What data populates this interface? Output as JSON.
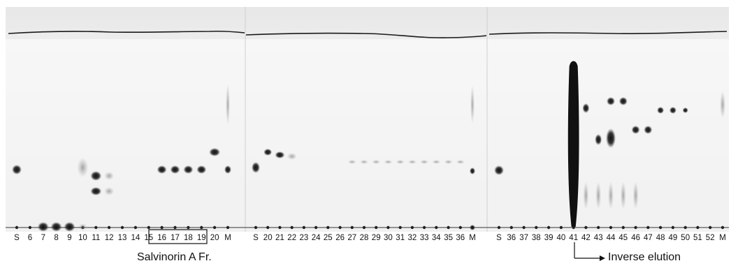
{
  "panels": [
    {
      "lanes": [
        "S",
        "6",
        "7",
        "8",
        "9",
        "10",
        "11",
        "12",
        "13",
        "14",
        "15",
        "16",
        "17",
        "18",
        "19",
        "20",
        "M"
      ]
    },
    {
      "lanes": [
        "S",
        "20",
        "21",
        "22",
        "23",
        "24",
        "25",
        "26",
        "27",
        "28",
        "29",
        "30",
        "31",
        "32",
        "33",
        "34",
        "35",
        "36",
        "M"
      ]
    },
    {
      "lanes": [
        "S",
        "36",
        "37",
        "38",
        "39",
        "40",
        "41",
        "42",
        "43",
        "44",
        "45",
        "46",
        "47",
        "48",
        "49",
        "50",
        "51",
        "52",
        "M"
      ]
    }
  ],
  "captions": {
    "left": "Salvinorin A Fr.",
    "right": "Inverse elution"
  },
  "highlight_box_lanes": [
    "16",
    "17",
    "18",
    "19"
  ],
  "arrow_from_lane": "41",
  "colors": {
    "plate": "#f2f2f2",
    "header_band": "#e4e4e4",
    "solvent_front": "#1a1a1a",
    "spot": "#2a2a2a"
  }
}
